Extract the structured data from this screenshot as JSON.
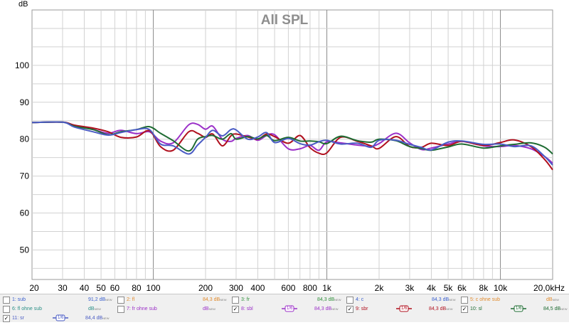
{
  "chart_data": {
    "type": "line",
    "title": "All SPL",
    "ylabel": "dB",
    "xscale": "log",
    "xlim": [
      20,
      20000
    ],
    "ylim": [
      42,
      115
    ],
    "yticks": [
      50,
      60,
      70,
      80,
      90,
      100
    ],
    "xticks": [
      {
        "v": 20,
        "label": "20"
      },
      {
        "v": 30,
        "label": "30"
      },
      {
        "v": 40,
        "label": "40"
      },
      {
        "v": 50,
        "label": "50"
      },
      {
        "v": 60,
        "label": "60"
      },
      {
        "v": 80,
        "label": "80"
      },
      {
        "v": 100,
        "label": "100"
      },
      {
        "v": 200,
        "label": "200"
      },
      {
        "v": 300,
        "label": "300"
      },
      {
        "v": 400,
        "label": "400"
      },
      {
        "v": 600,
        "label": "600"
      },
      {
        "v": 800,
        "label": "800"
      },
      {
        "v": 1000,
        "label": "1k"
      },
      {
        "v": 2000,
        "label": "2k"
      },
      {
        "v": 3000,
        "label": "3k"
      },
      {
        "v": 4000,
        "label": "4k"
      },
      {
        "v": 5000,
        "label": "5k"
      },
      {
        "v": 6000,
        "label": "6k"
      },
      {
        "v": 8000,
        "label": "8k"
      },
      {
        "v": 10000,
        "label": "10k"
      },
      {
        "v": 20000,
        "label": "20,0kHz"
      }
    ],
    "grid": true,
    "series": [
      {
        "name": "8: sbl",
        "color": "#9b30c8",
        "x": [
          20,
          30,
          35,
          45,
          55,
          65,
          80,
          95,
          110,
          130,
          160,
          180,
          200,
          220,
          250,
          280,
          300,
          350,
          400,
          450,
          500,
          600,
          700,
          800,
          900,
          1000,
          1200,
          1500,
          1800,
          2000,
          2500,
          3000,
          3500,
          4000,
          5000,
          6000,
          8000,
          10000,
          12000,
          15000,
          18000,
          20000
        ],
        "y": [
          84.5,
          84.6,
          83.8,
          82.6,
          81.6,
          82.4,
          81.5,
          82.0,
          79.5,
          79.0,
          83.9,
          84.0,
          82.7,
          83.5,
          80.0,
          79.4,
          80.2,
          81.0,
          79.7,
          81.0,
          81.2,
          77.4,
          77.4,
          78.3,
          77.0,
          79.3,
          79.0,
          78.4,
          78.1,
          78.8,
          81.6,
          79.0,
          77.2,
          77.6,
          78.7,
          79.4,
          78.2,
          78.0,
          78.3,
          77.4,
          75.3,
          73.5
        ]
      },
      {
        "name": "9: sbr",
        "color": "#b0101e",
        "x": [
          20,
          30,
          35,
          45,
          55,
          65,
          80,
          95,
          110,
          130,
          160,
          180,
          200,
          220,
          250,
          280,
          300,
          350,
          400,
          450,
          500,
          600,
          700,
          800,
          900,
          1000,
          1200,
          1500,
          1800,
          2000,
          2500,
          3000,
          3500,
          4000,
          5000,
          6000,
          8000,
          10000,
          12000,
          15000,
          18000,
          20000
        ],
        "y": [
          84.5,
          84.6,
          83.8,
          83.0,
          82.0,
          80.5,
          80.6,
          82.3,
          78.0,
          77.0,
          82.0,
          81.6,
          80.5,
          81.4,
          78.2,
          80.9,
          81.4,
          80.6,
          80.0,
          81.4,
          80.7,
          78.9,
          81.0,
          77.7,
          76.2,
          76.3,
          80.5,
          79.4,
          78.2,
          77.5,
          80.7,
          78.0,
          77.8,
          78.9,
          78.3,
          79.4,
          78.3,
          79.1,
          79.8,
          78.0,
          74.5,
          71.7
        ]
      },
      {
        "name": "10: sl",
        "color": "#1e6b32",
        "x": [
          20,
          30,
          35,
          45,
          55,
          65,
          80,
          95,
          110,
          130,
          160,
          180,
          200,
          220,
          250,
          280,
          300,
          350,
          400,
          450,
          500,
          600,
          700,
          800,
          900,
          1000,
          1200,
          1500,
          1800,
          2000,
          2500,
          3000,
          3500,
          4000,
          5000,
          6000,
          8000,
          10000,
          12000,
          15000,
          18000,
          20000
        ],
        "y": [
          84.5,
          84.6,
          83.5,
          82.6,
          81.2,
          82.0,
          82.6,
          83.4,
          81.6,
          79.6,
          76.8,
          80.0,
          80.7,
          81.0,
          80.0,
          81.5,
          80.0,
          80.7,
          80.1,
          81.0,
          79.6,
          80.5,
          79.5,
          79.5,
          79.3,
          78.8,
          80.8,
          79.6,
          79.2,
          80.0,
          79.6,
          78.0,
          77.5,
          77.0,
          77.9,
          78.7,
          77.6,
          78.2,
          78.6,
          79.0,
          77.8,
          76.0
        ]
      },
      {
        "name": "11: sr",
        "color": "#4a5cc4",
        "x": [
          20,
          30,
          35,
          45,
          55,
          65,
          80,
          95,
          110,
          130,
          160,
          180,
          200,
          220,
          250,
          280,
          300,
          350,
          400,
          450,
          500,
          600,
          700,
          800,
          900,
          1000,
          1200,
          1500,
          1800,
          2000,
          2500,
          3000,
          3500,
          4000,
          5000,
          6000,
          8000,
          10000,
          12000,
          15000,
          18000,
          20000
        ],
        "y": [
          84.5,
          84.6,
          83.3,
          82.0,
          81.1,
          81.8,
          82.6,
          82.6,
          78.7,
          78.2,
          76.0,
          78.4,
          80.5,
          82.4,
          80.9,
          82.6,
          82.5,
          80.0,
          80.6,
          81.8,
          79.1,
          80.2,
          78.8,
          78.4,
          79.3,
          79.7,
          78.7,
          78.9,
          77.8,
          79.7,
          79.7,
          78.6,
          77.8,
          77.1,
          79.2,
          79.5,
          78.6,
          78.7,
          78.0,
          78.2,
          75.3,
          73.0
        ]
      }
    ]
  },
  "legend": {
    "items": [
      {
        "checked": false,
        "name": "1: sub",
        "value": "91,2 dB",
        "sup": "NEW",
        "name_color": "#3a5fcd",
        "value_color": "#3a5fcd"
      },
      {
        "checked": false,
        "name": "2: fl",
        "value": "84,3 dB",
        "sup": "NEW",
        "name_color": "#e08a2c",
        "value_color": "#e08a2c"
      },
      {
        "checked": false,
        "name": "3: fr",
        "value": "84,3 dB",
        "sup": "NEW",
        "name_color": "#2f8f3a",
        "value_color": "#2f8f3a"
      },
      {
        "checked": false,
        "name": "4: c",
        "value": "84,3 dB",
        "sup": "NEW",
        "name_color": "#3a5fcd",
        "value_color": "#3a5fcd"
      },
      {
        "checked": false,
        "name": "5: c ohne sub",
        "value": "dB",
        "sup": "NEW",
        "name_color": "#e08a2c",
        "value_color": "#e08a2c"
      },
      {
        "checked": false,
        "name": "6: fl ohne sub",
        "value": "dB",
        "sup": "NEW",
        "name_color": "#2a8f86",
        "value_color": "#2a8f86"
      },
      {
        "checked": false,
        "name": "7: fr ohne sub",
        "value": "dB",
        "sup": "NEW",
        "name_color": "#9b30c8",
        "value_color": "#9b30c8"
      },
      {
        "checked": true,
        "name": "8: sbl",
        "value": "84,3 dB",
        "sup": "NEW",
        "name_color": "#9b30c8",
        "value_color": "#9b30c8",
        "smooth": "1/6",
        "smooth_color": "#9b30c8"
      },
      {
        "checked": true,
        "name": "9: sbr",
        "value": "84,3 dB",
        "sup": "NEW",
        "name_color": "#b0101e",
        "value_color": "#b0101e",
        "smooth": "1/6",
        "smooth_color": "#b0101e"
      },
      {
        "checked": true,
        "name": "10: sl",
        "value": "84,5 dB",
        "sup": "NEW",
        "name_color": "#1e6b32",
        "value_color": "#1e6b32",
        "smooth": "1/6",
        "smooth_color": "#1e6b32"
      },
      {
        "checked": true,
        "name": "11: sr",
        "value": "84,4 dB",
        "sup": "NEW",
        "name_color": "#4a5cc4",
        "value_color": "#4a5cc4",
        "smooth": "1/6",
        "smooth_color": "#4a5cc4"
      }
    ]
  },
  "colors": {
    "plot_bg": "#ffffff",
    "minor_grid": "#d2d2d2",
    "major_grid": "#8a8a8a",
    "title": "#8e8e8e",
    "panel_bg": "#f0f0f0"
  }
}
